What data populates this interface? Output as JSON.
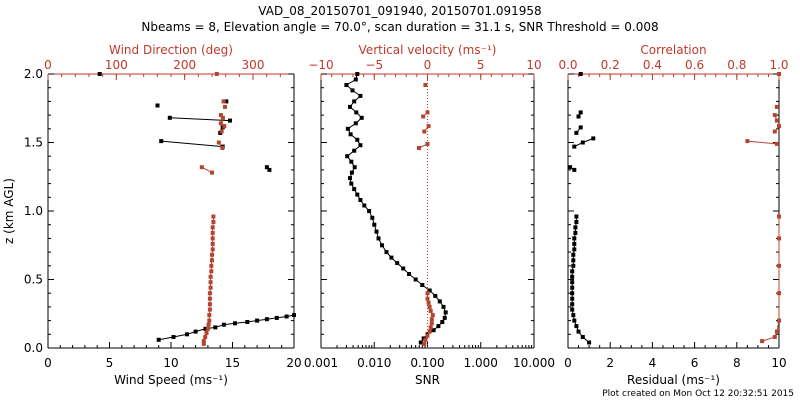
{
  "title_line1": "VAD_08_20150701_091940, 20150701.091958",
  "title_line2": "Nbeams = 8, Elevation angle = 70.0°, scan duration = 31.1 s, SNR Threshold = 0.008",
  "footer": "Plot created on Mon Oct 12 20:32:51 2015",
  "colors": {
    "black": "#000000",
    "red": "#c0392b",
    "series_red": "#b5452f"
  },
  "chart_data": [
    {
      "type": "line",
      "panel": "wind",
      "ylabel": "z (km AGL)",
      "ylim": [
        0,
        2
      ],
      "yticks": [
        "0.0",
        "0.5",
        "1.0",
        "1.5",
        "2.0"
      ],
      "bottom_axis": {
        "label": "Wind Speed (ms⁻¹)",
        "range": [
          0,
          20
        ],
        "ticks": [
          "0",
          "5",
          "10",
          "15",
          "20"
        ]
      },
      "top_axis": {
        "label": "Wind Direction (deg)",
        "range": [
          0,
          360
        ],
        "ticks": [
          "0",
          "100",
          "200",
          "300"
        ]
      },
      "series": [
        {
          "name": "Wind Speed",
          "color": "black",
          "axis": "bottom",
          "segments": [
            [
              [
                9.0,
                0.06
              ],
              [
                10.2,
                0.08
              ],
              [
                11.3,
                0.1
              ],
              [
                12.0,
                0.12
              ],
              [
                12.8,
                0.14
              ],
              [
                13.6,
                0.15
              ],
              [
                14.3,
                0.17
              ],
              [
                15.2,
                0.18
              ],
              [
                16.2,
                0.19
              ],
              [
                17.0,
                0.2
              ],
              [
                17.8,
                0.21
              ],
              [
                18.6,
                0.22
              ],
              [
                19.4,
                0.23
              ],
              [
                20.0,
                0.24
              ]
            ],
            [
              [
                17.8,
                1.32
              ],
              [
                18.0,
                1.3
              ]
            ],
            [
              [
                9.2,
                1.51
              ],
              [
                14.2,
                1.47
              ]
            ],
            [
              [
                9.9,
                1.68
              ],
              [
                14.8,
                1.66
              ]
            ],
            [
              [
                14.0,
                1.57
              ],
              [
                14.2,
                1.61
              ]
            ],
            [
              [
                8.9,
                1.77
              ]
            ],
            [
              [
                14.5,
                1.8
              ]
            ],
            [
              [
                4.2,
                2.0
              ]
            ]
          ]
        },
        {
          "name": "Wind Direction",
          "color": "series_red",
          "axis": "top",
          "segments": [
            [
              [
                228,
                0.03
              ],
              [
                228,
                0.05
              ],
              [
                230,
                0.08
              ],
              [
                232,
                0.11
              ],
              [
                234,
                0.14
              ],
              [
                235,
                0.17
              ],
              [
                236,
                0.2
              ],
              [
                236,
                0.24
              ],
              [
                237,
                0.28
              ],
              [
                237,
                0.32
              ],
              [
                237,
                0.36
              ],
              [
                237,
                0.4
              ],
              [
                238,
                0.44
              ],
              [
                238,
                0.48
              ],
              [
                238,
                0.52
              ],
              [
                239,
                0.56
              ],
              [
                239,
                0.6
              ],
              [
                240,
                0.64
              ],
              [
                240,
                0.68
              ],
              [
                241,
                0.72
              ],
              [
                241,
                0.76
              ],
              [
                241,
                0.8
              ],
              [
                241,
                0.84
              ],
              [
                241,
                0.88
              ],
              [
                242,
                0.92
              ],
              [
                242,
                0.96
              ]
            ],
            [
              [
                225,
                1.32
              ],
              [
                240,
                1.28
              ]
            ],
            [
              [
                255,
                1.46
              ],
              [
                250,
                1.5
              ]
            ],
            [
              [
                254,
                1.58
              ],
              [
                258,
                1.62
              ]
            ],
            [
              [
                253,
                1.64
              ],
              [
                256,
                1.68
              ],
              [
                253,
                1.7
              ]
            ],
            [
              [
                259,
                1.76
              ]
            ],
            [
              [
                257,
                1.8
              ]
            ],
            [
              [
                247,
                2.0
              ]
            ]
          ]
        }
      ]
    },
    {
      "type": "line",
      "panel": "snr",
      "ylim": [
        0,
        2
      ],
      "bottom_axis": {
        "label": "SNR",
        "range": [
          0.001,
          10
        ],
        "scale": "log",
        "ticks": [
          "0.001",
          "0.010",
          "0.100",
          "1.000",
          "10.000"
        ]
      },
      "top_axis": {
        "label": "Vertical velocity (ms⁻¹)",
        "range": [
          -10,
          10
        ],
        "ticks": [
          "−10",
          "−5",
          "0",
          "5",
          "10"
        ]
      },
      "series": [
        {
          "name": "SNR",
          "color": "black",
          "axis": "bottom",
          "points": [
            [
              0.075,
              0.04
            ],
            [
              0.085,
              0.07
            ],
            [
              0.1,
              0.1
            ],
            [
              0.13,
              0.13
            ],
            [
              0.16,
              0.16
            ],
            [
              0.19,
              0.19
            ],
            [
              0.21,
              0.22
            ],
            [
              0.22,
              0.26
            ],
            [
              0.2,
              0.3
            ],
            [
              0.17,
              0.34
            ],
            [
              0.14,
              0.38
            ],
            [
              0.11,
              0.42
            ],
            [
              0.08,
              0.46
            ],
            [
              0.06,
              0.5
            ],
            [
              0.045,
              0.54
            ],
            [
              0.035,
              0.58
            ],
            [
              0.027,
              0.62
            ],
            [
              0.021,
              0.66
            ],
            [
              0.017,
              0.7
            ],
            [
              0.014,
              0.75
            ],
            [
              0.012,
              0.8
            ],
            [
              0.011,
              0.85
            ],
            [
              0.01,
              0.9
            ],
            [
              0.0092,
              0.95
            ],
            [
              0.008,
              1.0
            ],
            [
              0.0065,
              1.04
            ],
            [
              0.0055,
              1.08
            ],
            [
              0.0048,
              1.12
            ],
            [
              0.0042,
              1.16
            ],
            [
              0.0037,
              1.2
            ],
            [
              0.0035,
              1.24
            ],
            [
              0.0038,
              1.28
            ],
            [
              0.0043,
              1.32
            ],
            [
              0.0037,
              1.36
            ],
            [
              0.0031,
              1.4
            ],
            [
              0.0042,
              1.44
            ],
            [
              0.0055,
              1.48
            ],
            [
              0.0048,
              1.52
            ],
            [
              0.0036,
              1.56
            ],
            [
              0.0032,
              1.6
            ],
            [
              0.0045,
              1.64
            ],
            [
              0.0058,
              1.68
            ],
            [
              0.0046,
              1.72
            ],
            [
              0.0035,
              1.76
            ],
            [
              0.0042,
              1.8
            ],
            [
              0.0055,
              1.84
            ],
            [
              0.0039,
              1.88
            ],
            [
              0.003,
              1.92
            ],
            [
              0.0045,
              1.96
            ],
            [
              0.0048,
              2.0
            ]
          ]
        },
        {
          "name": "Vertical velocity",
          "color": "series_red",
          "axis": "top",
          "segments": [
            [
              [
                -0.3,
                0.03
              ],
              [
                -0.2,
                0.06
              ],
              [
                0.0,
                0.09
              ],
              [
                0.2,
                0.12
              ],
              [
                0.3,
                0.15
              ],
              [
                0.4,
                0.18
              ],
              [
                0.4,
                0.21
              ],
              [
                0.5,
                0.24
              ],
              [
                0.3,
                0.27
              ],
              [
                0.2,
                0.3
              ],
              [
                0.1,
                0.33
              ],
              [
                0.0,
                0.36
              ],
              [
                0.0,
                0.4
              ]
            ],
            [
              [
                -0.8,
                1.46
              ],
              [
                0.0,
                1.49
              ]
            ],
            [
              [
                -0.3,
                1.58
              ],
              [
                0.1,
                1.62
              ]
            ],
            [
              [
                -0.4,
                1.69
              ],
              [
                0.0,
                1.72
              ]
            ],
            [
              [
                -0.2,
                1.92
              ]
            ]
          ]
        }
      ]
    },
    {
      "type": "line",
      "panel": "residual",
      "ylim": [
        0,
        2
      ],
      "bottom_axis": {
        "label": "Residual (ms⁻¹)",
        "range": [
          0,
          10
        ],
        "ticks": [
          "0",
          "2",
          "4",
          "6",
          "8",
          "10"
        ]
      },
      "top_axis": {
        "label": "Correlation",
        "range": [
          0,
          1
        ],
        "ticks": [
          "0.0",
          "0.2",
          "0.4",
          "0.6",
          "0.8",
          "1.0"
        ]
      },
      "series": [
        {
          "name": "Residual",
          "color": "black",
          "axis": "bottom",
          "segments": [
            [
              [
                1.0,
                0.04
              ],
              [
                0.7,
                0.08
              ],
              [
                0.5,
                0.12
              ],
              [
                0.4,
                0.16
              ],
              [
                0.3,
                0.2
              ],
              [
                0.25,
                0.24
              ],
              [
                0.2,
                0.28
              ],
              [
                0.2,
                0.32
              ],
              [
                0.2,
                0.36
              ],
              [
                0.2,
                0.4
              ],
              [
                0.2,
                0.44
              ],
              [
                0.2,
                0.48
              ],
              [
                0.2,
                0.52
              ],
              [
                0.2,
                0.56
              ],
              [
                0.25,
                0.6
              ],
              [
                0.25,
                0.64
              ],
              [
                0.25,
                0.68
              ],
              [
                0.3,
                0.72
              ],
              [
                0.3,
                0.76
              ],
              [
                0.3,
                0.8
              ],
              [
                0.35,
                0.84
              ],
              [
                0.35,
                0.88
              ],
              [
                0.4,
                0.92
              ],
              [
                0.4,
                0.96
              ]
            ],
            [
              [
                0.1,
                1.32
              ],
              [
                0.3,
                1.3
              ]
            ],
            [
              [
                0.3,
                1.47
              ],
              [
                0.7,
                1.5
              ],
              [
                1.2,
                1.53
              ]
            ],
            [
              [
                0.4,
                1.57
              ],
              [
                0.6,
                1.61
              ]
            ],
            [
              [
                0.5,
                1.69
              ],
              [
                0.6,
                1.72
              ]
            ],
            [
              [
                0.6,
                2.0
              ]
            ]
          ]
        },
        {
          "name": "Correlation",
          "color": "series_red",
          "axis": "top",
          "segments": [
            [
              [
                0.92,
                0.05
              ],
              [
                0.98,
                0.08
              ],
              [
                0.99,
                0.12
              ],
              [
                1.0,
                0.2
              ],
              [
                1.0,
                0.4
              ],
              [
                1.0,
                0.6
              ],
              [
                1.0,
                0.8
              ],
              [
                1.0,
                0.96
              ]
            ],
            [
              [
                0.85,
                1.51
              ],
              [
                0.99,
                1.49
              ]
            ],
            [
              [
                0.98,
                1.58
              ],
              [
                1.0,
                1.62
              ]
            ],
            [
              [
                0.99,
                1.66
              ],
              [
                0.98,
                1.7
              ]
            ],
            [
              [
                0.99,
                1.76
              ]
            ],
            [
              [
                1.0,
                2.0
              ]
            ]
          ]
        }
      ]
    }
  ]
}
